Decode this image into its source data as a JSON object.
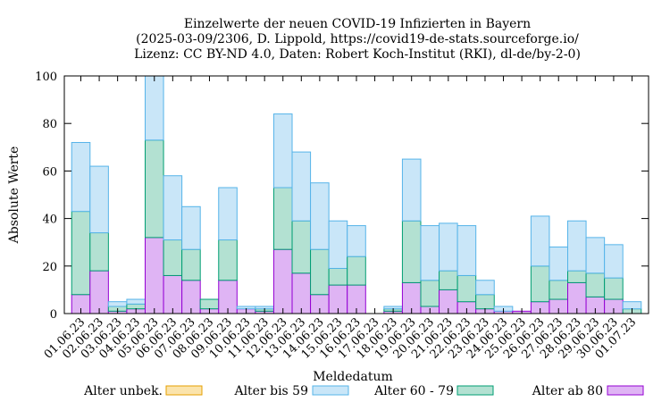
{
  "chart_data": {
    "type": "bar",
    "stacked": true,
    "title_lines": [
      "Einzelwerte der neuen COVID-19 Infizierten in Bayern",
      "(2025-03-09/2306, D. Lippold, https://covid19-de-stats.sourceforge.io/",
      "Lizenz: CC BY-ND 4.0, Daten: Robert Koch-Institut (RKI), dl-de/by-2-0)"
    ],
    "xlabel": "Meldedatum",
    "ylabel": "Absolute Werte",
    "ylim": [
      0,
      100
    ],
    "yticks": [
      0,
      20,
      40,
      60,
      80,
      100
    ],
    "grid": false,
    "legend_position": "bottom",
    "categories": [
      "01.06.23",
      "02.06.23",
      "03.06.23",
      "04.06.23",
      "05.06.23",
      "06.06.23",
      "07.06.23",
      "08.06.23",
      "09.06.23",
      "10.06.23",
      "11.06.23",
      "12.06.23",
      "13.06.23",
      "14.06.23",
      "15.06.23",
      "16.06.23",
      "17.06.23",
      "18.06.23",
      "19.06.23",
      "20.06.23",
      "21.06.23",
      "22.06.23",
      "23.06.23",
      "24.06.23",
      "25.06.23",
      "26.06.23",
      "27.06.23",
      "28.06.23",
      "29.06.23",
      "30.06.23",
      "01.07.23"
    ],
    "series": [
      {
        "name": "Alter ab 80",
        "color": "#dfb4f4",
        "edge": "#9400d3",
        "values": [
          8,
          18,
          1,
          2,
          32,
          16,
          14,
          2,
          14,
          2,
          1,
          27,
          17,
          8,
          12,
          12,
          0,
          1,
          13,
          3,
          10,
          5,
          2,
          1,
          1,
          5,
          6,
          13,
          7,
          6,
          0
        ]
      },
      {
        "name": "Alter 60 - 79",
        "color": "#b3e1d2",
        "edge": "#009e73",
        "values": [
          35,
          16,
          2,
          2,
          41,
          15,
          13,
          4,
          17,
          0,
          1,
          26,
          22,
          19,
          7,
          12,
          0,
          1,
          26,
          11,
          8,
          11,
          6,
          0,
          0,
          15,
          8,
          5,
          10,
          9,
          2
        ]
      },
      {
        "name": "Alter bis 59",
        "color": "#c9e6f8",
        "edge": "#56b4e9",
        "values": [
          29,
          28,
          2,
          2,
          27,
          27,
          18,
          0,
          22,
          1,
          1,
          31,
          29,
          28,
          20,
          13,
          0,
          1,
          26,
          23,
          20,
          21,
          6,
          2,
          0,
          21,
          14,
          21,
          15,
          14,
          3
        ]
      },
      {
        "name": "Alter unbek.",
        "color": "#fbe4ac",
        "edge": "#e69f00",
        "values": [
          0,
          0,
          0,
          0,
          0,
          0,
          0,
          0,
          0,
          0,
          0,
          0,
          0,
          0,
          0,
          0,
          0,
          0,
          0,
          0,
          0,
          0,
          0,
          0,
          0,
          0,
          0,
          0,
          0,
          0,
          0
        ]
      }
    ],
    "legend_order": [
      "Alter unbek.",
      "Alter bis 59",
      "Alter 60 - 79",
      "Alter ab 80"
    ]
  }
}
